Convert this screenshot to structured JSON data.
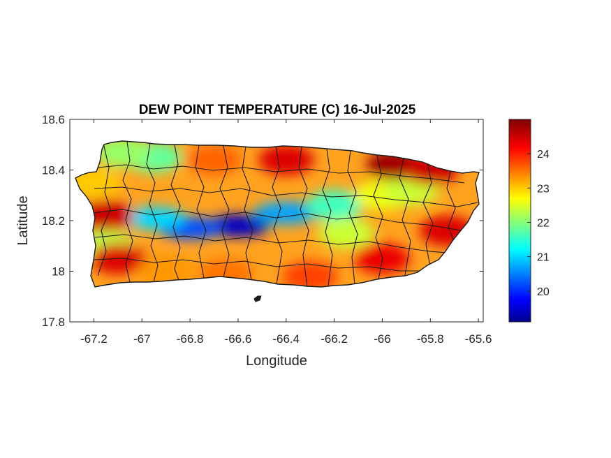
{
  "chart_data": {
    "type": "heatmap",
    "title": "DEW POINT TEMPERATURE (C) 16-Jul-2025",
    "xlabel": "Longitude",
    "ylabel": "Latitude",
    "xlim": [
      -67.3,
      -65.58
    ],
    "ylim": [
      17.8,
      18.6
    ],
    "xticks": [
      -67.2,
      -67,
      -66.8,
      -66.6,
      -66.4,
      -66.2,
      -66,
      -65.8,
      -65.6
    ],
    "xtick_labels": [
      "-67.2",
      "-67",
      "-66.8",
      "-66.6",
      "-66.4",
      "-66.2",
      "-66",
      "-65.8",
      "-65.6"
    ],
    "yticks": [
      17.8,
      18,
      18.2,
      18.4,
      18.6
    ],
    "ytick_labels": [
      "17.8",
      "18",
      "18.2",
      "18.4",
      "18.6"
    ],
    "colorbar": {
      "range": [
        19.1,
        25.0
      ],
      "ticks": [
        20,
        21,
        22,
        23,
        24
      ],
      "tick_labels": [
        "20",
        "21",
        "22",
        "23",
        "24"
      ],
      "colormap": "jet"
    },
    "hotspots": [
      {
        "lon": -66.6,
        "lat": 18.18,
        "value": 19.4
      },
      {
        "lon": -66.8,
        "lat": 18.17,
        "value": 20.2
      },
      {
        "lon": -66.4,
        "lat": 18.23,
        "value": 20.7
      },
      {
        "lon": -66.95,
        "lat": 18.21,
        "value": 21.0
      },
      {
        "lon": -66.2,
        "lat": 18.26,
        "value": 21.6
      },
      {
        "lon": -66.95,
        "lat": 18.45,
        "value": 21.8
      },
      {
        "lon": -67.08,
        "lat": 18.47,
        "value": 22.1
      },
      {
        "lon": -66.0,
        "lat": 18.3,
        "value": 22.6
      },
      {
        "lon": -66.15,
        "lat": 18.15,
        "value": 22.4
      },
      {
        "lon": -65.88,
        "lat": 18.32,
        "value": 22.4
      },
      {
        "lon": -67.15,
        "lat": 18.1,
        "value": 22.3
      },
      {
        "lon": -65.95,
        "lat": 18.42,
        "value": 24.8
      },
      {
        "lon": -65.8,
        "lat": 18.4,
        "value": 24.5
      },
      {
        "lon": -66.4,
        "lat": 18.44,
        "value": 24.4
      },
      {
        "lon": -66.0,
        "lat": 18.05,
        "value": 24.3
      },
      {
        "lon": -65.73,
        "lat": 18.16,
        "value": 24.4
      },
      {
        "lon": -67.15,
        "lat": 18.22,
        "value": 24.5
      },
      {
        "lon": -67.1,
        "lat": 18.05,
        "value": 24.4
      },
      {
        "lon": -66.3,
        "lat": 17.98,
        "value": 23.8
      },
      {
        "lon": -66.65,
        "lat": 17.99,
        "value": 23.5
      },
      {
        "lon": -66.9,
        "lat": 18.0,
        "value": 23.3
      },
      {
        "lon": -66.7,
        "lat": 18.44,
        "value": 23.6
      },
      {
        "lon": -67.2,
        "lat": 18.35,
        "value": 23.0
      }
    ]
  }
}
